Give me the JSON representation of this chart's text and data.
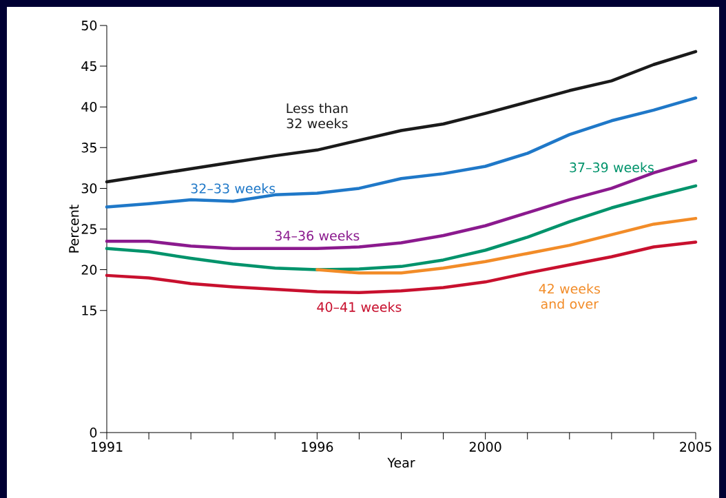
{
  "chart_data": {
    "type": "line",
    "xlabel": "Year",
    "ylabel": "Percent",
    "x": [
      1991,
      1992,
      1993,
      1994,
      1995,
      1996,
      1997,
      1998,
      1999,
      2000,
      2001,
      2002,
      2003,
      2004,
      2005
    ],
    "xlim": [
      1991,
      2005
    ],
    "xticks": [
      1991,
      {
        "value": 1992,
        "label": null
      },
      {
        "value": 1993,
        "label": null
      },
      {
        "value": 1994,
        "label": null
      },
      {
        "value": 1995,
        "label": null
      },
      1996,
      {
        "value": 1997,
        "label": null
      },
      {
        "value": 1998,
        "label": null
      },
      {
        "value": 1999,
        "label": null
      },
      2000,
      {
        "value": 2001,
        "label": null
      },
      {
        "value": 2002,
        "label": null
      },
      {
        "value": 2003,
        "label": null
      },
      {
        "value": 2004,
        "label": null
      },
      2005
    ],
    "ylim": [
      0,
      50
    ],
    "yticks": [
      0,
      15,
      20,
      25,
      30,
      35,
      40,
      45,
      50
    ],
    "grid": false,
    "legend": false,
    "marker": "none",
    "line_style": "solid",
    "series": [
      {
        "name": "Less than 32 weeks",
        "color": "#1a1a1a",
        "values": [
          30.8,
          31.6,
          32.4,
          33.2,
          34.0,
          34.7,
          35.9,
          37.1,
          37.9,
          39.2,
          40.6,
          42.0,
          43.2,
          45.2,
          46.8
        ]
      },
      {
        "name": "32–33 weeks",
        "color": "#1f78c8",
        "values": [
          27.7,
          28.1,
          28.6,
          28.4,
          29.2,
          29.4,
          30.0,
          31.2,
          31.8,
          32.7,
          34.3,
          36.6,
          38.3,
          39.6,
          41.1
        ]
      },
      {
        "name": "34–36 weeks",
        "color": "#8b1a8e",
        "values": [
          23.5,
          23.5,
          22.9,
          22.6,
          22.6,
          22.6,
          22.8,
          23.3,
          24.2,
          25.4,
          27.0,
          28.6,
          30.0,
          31.9,
          33.4
        ]
      },
      {
        "name": "37–39 weeks",
        "color": "#00936b",
        "values": [
          22.6,
          22.2,
          21.4,
          20.7,
          20.2,
          20.0,
          20.1,
          20.4,
          21.2,
          22.4,
          24.0,
          25.9,
          27.6,
          29.0,
          30.3
        ]
      },
      {
        "name": "42 weeks and over",
        "color": "#f28c28",
        "values": [
          null,
          null,
          null,
          null,
          null,
          20.0,
          19.6,
          19.6,
          20.2,
          21.0,
          22.0,
          23.0,
          24.3,
          25.6,
          26.3
        ]
      },
      {
        "name": "40–41 weeks",
        "color": "#c8102e",
        "values": [
          19.3,
          19.0,
          18.3,
          17.9,
          17.6,
          17.3,
          17.2,
          17.4,
          17.8,
          18.5,
          19.6,
          20.6,
          21.6,
          22.8,
          23.4
        ]
      }
    ]
  }
}
